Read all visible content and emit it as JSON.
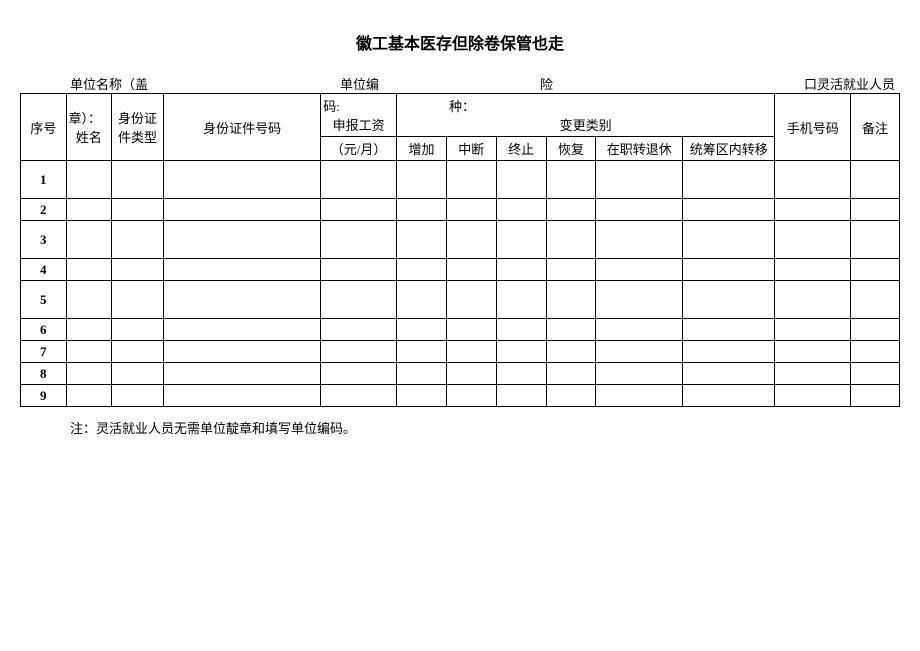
{
  "title": "徽工基本医存但除卷保管也走",
  "header": {
    "unit_name_label": "单位名称（盖",
    "unit_name_cont": "章）：",
    "unit_code_label": "单位编",
    "unit_code_cont": "码:",
    "insurance_label": "险",
    "insurance_cont": "种：",
    "flexible_label": "口灵活就业人员"
  },
  "table": {
    "headers": {
      "seq": "序号",
      "name": "姓名",
      "id_type": "身份证件类型",
      "id_number": "身份证件号码",
      "salary": "申报工资",
      "salary_unit": "（元/月）",
      "change_type": "变更类别",
      "add": "增加",
      "interrupt": "中断",
      "terminate": "终止",
      "restore": "恢复",
      "retire": "在职转退休",
      "transfer": "统筹区内转移",
      "phone": "手机号码",
      "remark": "备注"
    },
    "rows": [
      "1",
      "2",
      "3",
      "4",
      "5",
      "6",
      "7",
      "8",
      "9"
    ],
    "row_heights": [
      "tall",
      "short",
      "tall",
      "short",
      "tall",
      "short",
      "short",
      "short",
      "short"
    ]
  },
  "footer_note": "注：灵活就业人员无需单位靛章和填写单位编码。"
}
